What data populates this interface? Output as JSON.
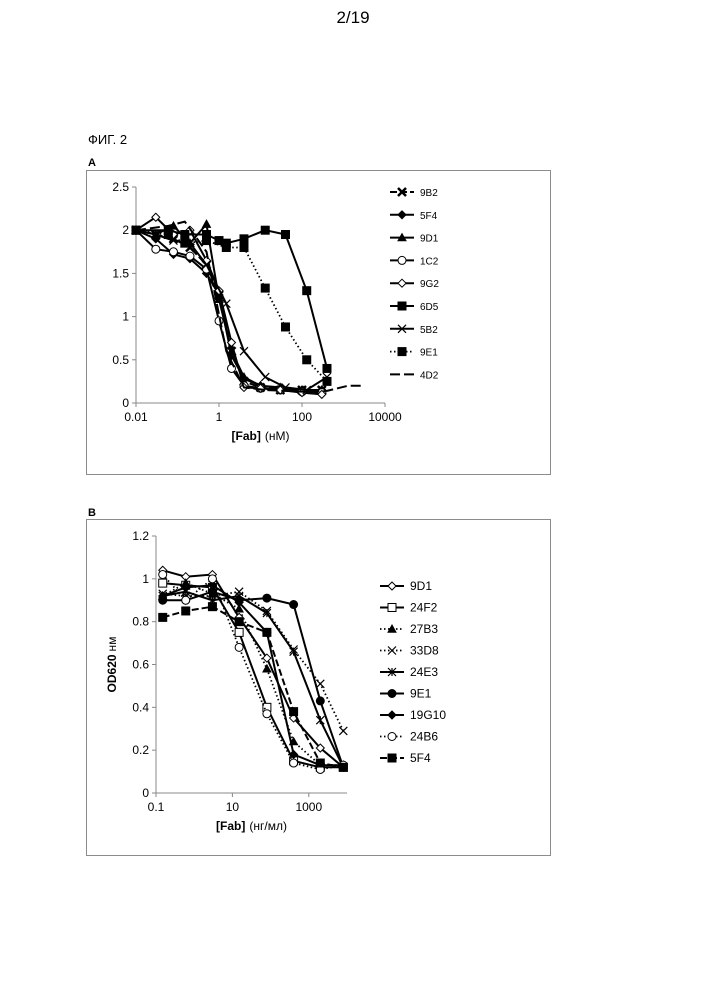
{
  "page": {
    "number": "2/19"
  },
  "figure": {
    "title": "ФИГ. 2"
  },
  "chart_data": [
    {
      "panel": "A",
      "type": "line",
      "xscale": "log",
      "xlim": [
        0.01,
        10000
      ],
      "ylim": [
        0,
        2.5
      ],
      "xticks": [
        "0.01",
        "1",
        "100",
        "10000"
      ],
      "yticks": [
        "0",
        "0.5",
        "1",
        "1.5",
        "2",
        "2.5"
      ],
      "xlabel_bold": "[Fab]",
      "xlabel_unit": "(нМ)",
      "ylabel": "",
      "grid": false,
      "legend": "right",
      "series": [
        {
          "name": "9B2",
          "marker": "x-bold",
          "line": "dash",
          "x": [
            0.01,
            0.03,
            0.08,
            0.2,
            0.5,
            1,
            2,
            4,
            10,
            30,
            100,
            300
          ],
          "y": [
            2.0,
            1.95,
            1.9,
            1.8,
            1.6,
            1.25,
            0.6,
            0.25,
            0.18,
            0.15,
            0.15,
            0.15
          ]
        },
        {
          "name": "5F4",
          "marker": "diamond-filled",
          "line": "solid",
          "x": [
            0.01,
            0.03,
            0.08,
            0.2,
            0.5,
            1,
            2,
            4,
            10,
            30,
            100,
            300
          ],
          "y": [
            2.0,
            1.9,
            1.72,
            1.67,
            1.5,
            1.25,
            0.55,
            0.28,
            0.2,
            0.17,
            0.15,
            0.15
          ]
        },
        {
          "name": "9D1",
          "marker": "triangle-filled",
          "line": "solid",
          "x": [
            0.01,
            0.03,
            0.08,
            0.2,
            0.5,
            1,
            2,
            4,
            10,
            30,
            100,
            300
          ],
          "y": [
            2.0,
            1.95,
            2.05,
            1.85,
            2.07,
            1.2,
            0.6,
            0.3,
            0.2,
            0.18,
            0.15,
            0.15
          ]
        },
        {
          "name": "1C2",
          "marker": "circle-open",
          "line": "solid",
          "x": [
            0.01,
            0.03,
            0.08,
            0.2,
            0.5,
            1,
            2,
            4,
            10,
            30,
            100,
            300
          ],
          "y": [
            2.0,
            1.78,
            1.75,
            1.7,
            1.55,
            0.95,
            0.4,
            0.2,
            0.17,
            0.15,
            0.13,
            0.12
          ]
        },
        {
          "name": "9G2",
          "marker": "diamond-open",
          "line": "solid",
          "x": [
            0.01,
            0.03,
            0.08,
            0.2,
            0.5,
            1,
            2,
            4,
            10,
            30,
            100,
            300
          ],
          "y": [
            2.0,
            2.15,
            1.95,
            2.0,
            1.65,
            1.3,
            0.7,
            0.18,
            0.17,
            0.15,
            0.12,
            0.1
          ]
        },
        {
          "name": "6D5",
          "marker": "square-filled",
          "line": "solid",
          "x": [
            0.01,
            0.06,
            0.15,
            0.5,
            1,
            1.5,
            4,
            13,
            40,
            130,
            400
          ],
          "y": [
            2.0,
            2.0,
            1.95,
            1.95,
            1.88,
            1.85,
            1.9,
            2.0,
            1.95,
            1.3,
            0.4
          ]
        },
        {
          "name": "5B2",
          "marker": "x-thin",
          "line": "solid",
          "x": [
            0.01,
            0.03,
            0.08,
            0.2,
            0.5,
            1.5,
            4,
            13,
            40,
            130,
            400
          ],
          "y": [
            2.0,
            1.95,
            1.88,
            1.85,
            1.6,
            1.15,
            0.6,
            0.3,
            0.18,
            0.15,
            0.3
          ]
        },
        {
          "name": "9E1",
          "marker": "square-filled",
          "line": "dot",
          "x": [
            0.01,
            0.06,
            0.15,
            0.5,
            1.5,
            4,
            13,
            40,
            130,
            400
          ],
          "y": [
            2.0,
            1.95,
            1.85,
            1.88,
            1.8,
            1.8,
            1.33,
            0.88,
            0.5,
            0.25
          ]
        },
        {
          "name": "4D2",
          "marker": "none",
          "line": "longdash",
          "x": [
            0.01,
            0.06,
            0.15,
            0.5,
            1.5,
            4,
            13,
            40,
            130,
            400,
            1300,
            2700
          ],
          "y": [
            2.0,
            2.05,
            2.1,
            1.75,
            0.6,
            0.18,
            0.15,
            0.14,
            0.13,
            0.14,
            0.2,
            0.2
          ]
        }
      ]
    },
    {
      "panel": "B",
      "type": "line",
      "xscale": "log",
      "xlim": [
        0.1,
        10000
      ],
      "ylim": [
        0,
        1.2
      ],
      "xticks": [
        "0.1",
        "10",
        "1000"
      ],
      "yticks": [
        "0",
        "0.2",
        "0.4",
        "0.6",
        "0.8",
        "1",
        "1.2"
      ],
      "xlabel_bold": "[Fab]",
      "xlabel_unit": "(нг/мл)",
      "ylabel_bold": "OD620",
      "ylabel_unit": "нм",
      "grid": false,
      "legend": "right",
      "series": [
        {
          "name": "9D1",
          "marker": "diamond-open",
          "line": "solid",
          "x": [
            0.15,
            0.6,
            3,
            15,
            80,
            400,
            2000,
            8000
          ],
          "y": [
            1.04,
            1.01,
            1.02,
            0.82,
            0.63,
            0.35,
            0.21,
            0.12
          ]
        },
        {
          "name": "24F2",
          "marker": "square-open",
          "line": "solid",
          "x": [
            0.15,
            0.6,
            3,
            15,
            80,
            400,
            2000,
            8000
          ],
          "y": [
            0.98,
            0.97,
            0.96,
            0.75,
            0.4,
            0.15,
            0.12,
            0.12
          ]
        },
        {
          "name": "27B3",
          "marker": "triangle-filled",
          "line": "dot",
          "x": [
            0.15,
            0.6,
            3,
            15,
            80,
            400,
            2000,
            8000
          ],
          "y": [
            0.92,
            0.98,
            0.93,
            0.86,
            0.58,
            0.24,
            0.13,
            0.13
          ]
        },
        {
          "name": "33D8",
          "marker": "x-thin",
          "line": "dot",
          "x": [
            0.15,
            0.6,
            3,
            15,
            80,
            400,
            2000,
            8000
          ],
          "y": [
            0.93,
            0.92,
            0.92,
            0.94,
            0.85,
            0.67,
            0.51,
            0.29
          ]
        },
        {
          "name": "24E3",
          "marker": "asterisk",
          "line": "solid",
          "x": [
            0.15,
            0.6,
            3,
            15,
            80,
            400,
            2000,
            8000
          ],
          "y": [
            0.92,
            0.94,
            0.9,
            0.92,
            0.84,
            0.66,
            0.34,
            0.12
          ]
        },
        {
          "name": "9E1",
          "marker": "circle-filled",
          "line": "solid",
          "x": [
            0.15,
            0.6,
            3,
            15,
            80,
            400,
            2000,
            8000
          ],
          "y": [
            0.9,
            0.9,
            0.94,
            0.9,
            0.91,
            0.88,
            0.43,
            0.12
          ]
        },
        {
          "name": "19G10",
          "marker": "diamond-filled",
          "line": "solid",
          "x": [
            0.15,
            0.6,
            3,
            15,
            80,
            400,
            2000,
            8000
          ],
          "y": [
            0.92,
            0.96,
            0.97,
            0.89,
            0.75,
            0.18,
            0.13,
            0.13
          ]
        },
        {
          "name": "24B6",
          "marker": "circle-open",
          "line": "dot",
          "x": [
            0.15,
            0.6,
            3,
            15,
            80,
            400,
            2000,
            8000
          ],
          "y": [
            1.02,
            0.9,
            1.0,
            0.68,
            0.37,
            0.14,
            0.11,
            0.13
          ]
        },
        {
          "name": "5F4",
          "marker": "square-filled",
          "line": "dash",
          "x": [
            0.15,
            0.6,
            3,
            15,
            80,
            400,
            2000,
            8000
          ],
          "y": [
            0.82,
            0.85,
            0.87,
            0.8,
            0.75,
            0.38,
            0.14,
            0.12
          ]
        }
      ]
    }
  ]
}
